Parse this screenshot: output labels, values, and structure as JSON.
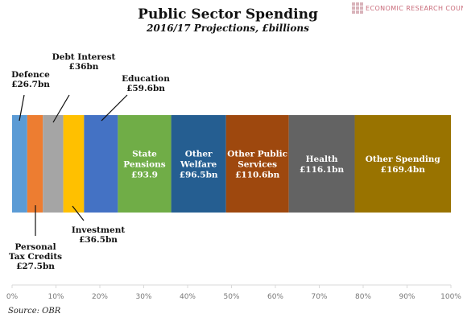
{
  "brand": {
    "name": "ECONOMIC RESEARCH COUNCIL",
    "icon": "erc-grid-logo-icon",
    "logo_color": "#d9b3ba",
    "text_color": "#c96b7a"
  },
  "source": "Source: OBR",
  "chart_data": {
    "type": "bar",
    "orientation": "horizontal-stacked-100",
    "title": "Public Sector Spending",
    "subtitle": "2016/17 Projections, £billions",
    "xlim": [
      0,
      100
    ],
    "x_ticks": [
      "0%",
      "10%",
      "20%",
      "30%",
      "40%",
      "50%",
      "60%",
      "70%",
      "80%",
      "90%",
      "100%"
    ],
    "grid": false,
    "legend": "none",
    "series": [
      {
        "label": "Defence £26.7bn",
        "value": 26.7,
        "color": "#5b9bd5",
        "label_position": "outside-top"
      },
      {
        "label": "Personal Tax Credits £27.5bn",
        "value": 27.5,
        "color": "#ed7d31",
        "label_position": "outside-bottom"
      },
      {
        "label": "Debt Interest £36bn",
        "value": 36,
        "color": "#a5a5a5",
        "label_position": "outside-top"
      },
      {
        "label": "Investment £36.5bn",
        "value": 36.5,
        "color": "#ffc000",
        "label_position": "outside-bottom"
      },
      {
        "label": "Education £59.6bn",
        "value": 59.6,
        "color": "#4472c4",
        "label_position": "outside-top"
      },
      {
        "label": "State Pensions £93.9",
        "value": 93.9,
        "color": "#70ad47",
        "label_position": "inside"
      },
      {
        "label": "Other Welfare £96.5bn",
        "value": 96.5,
        "color": "#255e91",
        "label_position": "inside"
      },
      {
        "label": "Other Public Services £110.6bn",
        "value": 110.6,
        "color": "#9e480e",
        "label_position": "inside"
      },
      {
        "label": "Health £116.1bn",
        "value": 116.1,
        "color": "#636363",
        "label_position": "inside"
      },
      {
        "label": "Other Spending £169.4bn",
        "value": 169.4,
        "color": "#997300",
        "label_position": "inside"
      }
    ],
    "label_lines": [
      [
        "Defence",
        "£26.7bn"
      ],
      [
        "Personal",
        "Tax Credits",
        "£27.5bn"
      ],
      [
        "Debt Interest",
        "£36bn"
      ],
      [
        "Investment",
        "£36.5bn"
      ],
      [
        "Education",
        "£59.6bn"
      ],
      [
        "State",
        "Pensions",
        "£93.9"
      ],
      [
        "Other",
        "Welfare",
        "£96.5bn"
      ],
      [
        "Other Public",
        "Services",
        "£110.6bn"
      ],
      [
        "Health",
        "£116.1bn"
      ],
      [
        "Other Spending",
        "£169.4bn"
      ]
    ]
  }
}
